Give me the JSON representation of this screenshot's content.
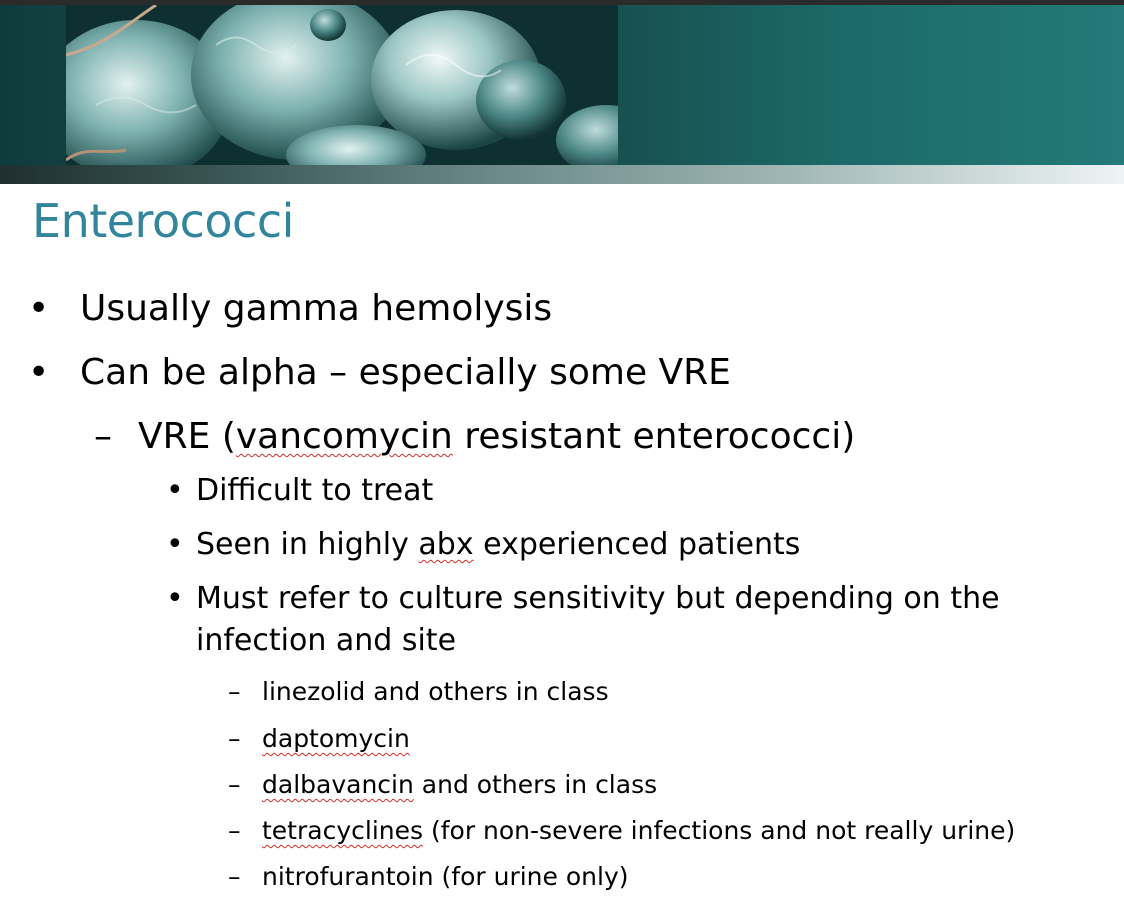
{
  "slide": {
    "title": "Enterococci",
    "colors": {
      "title": "#31859c",
      "header_band": "#17504f",
      "spellcheck_underline": "#d0302a"
    },
    "header_image": "microscope-bacteria-image",
    "bullets": [
      {
        "level": 1,
        "marker": "•",
        "text": "Usually gamma hemolysis"
      },
      {
        "level": 1,
        "marker": "•",
        "text": "Can be alpha – especially some VRE"
      },
      {
        "level": 2,
        "marker": "–",
        "pre": "VRE (",
        "flagged": "vancomycin",
        "post": " resistant enterococci)"
      },
      {
        "level": 3,
        "marker": "•",
        "text": "Difficult to treat"
      },
      {
        "level": 3,
        "marker": "•",
        "pre": "Seen in highly ",
        "flagged": "abx",
        "post": " experienced patients"
      },
      {
        "level": 3,
        "marker": "•",
        "line1": "Must refer to culture sensitivity but depending on the",
        "line2": "infection and site"
      },
      {
        "level": 4,
        "marker": "–",
        "text": "linezolid and others in class"
      },
      {
        "level": 4,
        "marker": "–",
        "flagged": "daptomycin"
      },
      {
        "level": 4,
        "marker": "–",
        "flagged": "dalbavancin",
        "post": " and others in class"
      },
      {
        "level": 4,
        "marker": "–",
        "flagged": "tetracyclines",
        "post": " (for non-severe infections and not really urine)"
      },
      {
        "level": 4,
        "marker": "–",
        "text": "nitrofurantoin (for urine only)"
      }
    ]
  }
}
